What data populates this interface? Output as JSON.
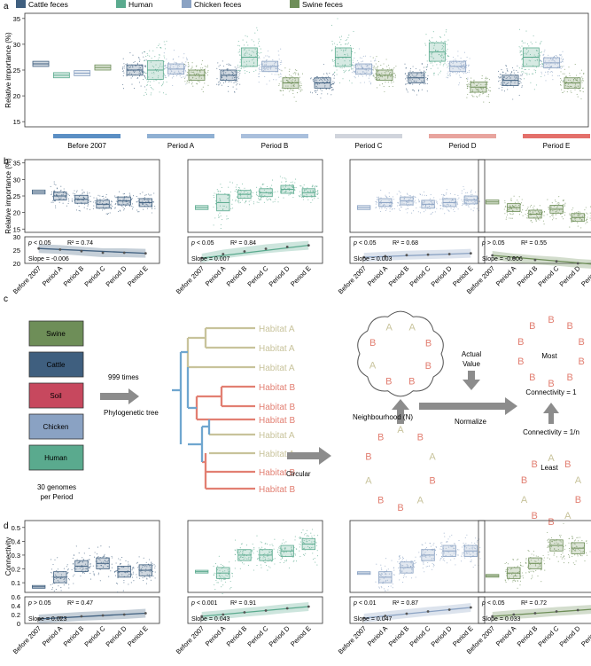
{
  "panels": {
    "a": "a",
    "b": "b",
    "c": "c",
    "d": "d"
  },
  "colors": {
    "cattle": "#3f5f7f",
    "human": "#5aaa8e",
    "chicken": "#8aa2c3",
    "swine": "#6e8e58",
    "soil": "#c7485e",
    "habitatA": "#c8c39b",
    "habitatB": "#e27f72",
    "tree_blue": "#6fa6cf",
    "arrow": "#8c8c8c"
  },
  "legend": [
    "Cattle feces",
    "Human",
    "Chicken feces",
    "Swine feces"
  ],
  "periods": [
    "Before 2007",
    "Period A",
    "Period B",
    "Period C",
    "Period D",
    "Period E"
  ],
  "period_bar_colors": [
    "#5b8fc4",
    "#8fb0d3",
    "#a9bfdc",
    "#d0d4dc",
    "#e8a49e",
    "#e4706b"
  ],
  "chart_data": [
    {
      "id": "a",
      "type": "box",
      "title": "",
      "ylabel": "Relative importance (%)",
      "ylim": [
        14,
        36
      ],
      "yticks": [
        15,
        20,
        25,
        30,
        35
      ],
      "categories": [
        "Before 2007",
        "Period A",
        "Period B",
        "Period C",
        "Period D",
        "Period E"
      ],
      "series": [
        {
          "name": "Cattle feces",
          "values": [
            26.2,
            25.0,
            24.0,
            22.5,
            23.5,
            23.0
          ]
        },
        {
          "name": "Human",
          "values": [
            24.0,
            25.0,
            27.5,
            27.5,
            28.5,
            27.5
          ]
        },
        {
          "name": "Chicken feces",
          "values": [
            24.4,
            25.2,
            25.7,
            25.2,
            25.7,
            26.4
          ]
        },
        {
          "name": "Swine feces",
          "values": [
            25.5,
            24.0,
            22.5,
            24.0,
            21.7,
            22.5
          ]
        }
      ]
    },
    {
      "id": "b",
      "type": "box",
      "ylabel": "Relative importance (%)",
      "ylim": [
        14,
        36
      ],
      "yticks": [
        15,
        20,
        25,
        30,
        35
      ],
      "categories": [
        "Before 2007",
        "Period A",
        "Period B",
        "Period C",
        "Period D",
        "Period E"
      ],
      "series": [
        {
          "name": "Cattle feces",
          "values": [
            26.2,
            25.0,
            24.0,
            22.5,
            23.5,
            23.0
          ],
          "p": "p < 0.05",
          "r2": "R² = 0.74",
          "slope": "Slope = -0.006",
          "trend": [
            25.6,
            25.2,
            24.6,
            24.0,
            24.0,
            23.8
          ]
        },
        {
          "name": "Human",
          "values": [
            21.5,
            23.0,
            25.5,
            26.0,
            27.0,
            26.0
          ],
          "p": "p < 0.05",
          "r2": "R² = 0.84",
          "slope": "Slope = 0.007",
          "trend": [
            22.0,
            23.5,
            24.5,
            25.5,
            26.2,
            26.8
          ]
        },
        {
          "name": "Chicken feces",
          "values": [
            21.5,
            23.0,
            23.5,
            22.5,
            23.0,
            23.8
          ],
          "p": "p < 0.05",
          "r2": "R² = 0.68",
          "slope": "Slope = 0.003",
          "trend": [
            22.3,
            22.7,
            23.1,
            23.3,
            23.5,
            23.8
          ]
        },
        {
          "name": "Swine feces",
          "values": [
            23.2,
            21.5,
            19.5,
            21.0,
            18.5,
            19.5
          ],
          "p": "p > 0.05",
          "r2": "R² = 0.55",
          "slope": "Slope = -0.006",
          "trend": [
            23.0,
            22.0,
            21.3,
            20.8,
            20.0,
            19.5
          ]
        }
      ],
      "subylim": [
        20,
        30
      ],
      "subyticks": [
        20,
        25,
        30
      ]
    },
    {
      "id": "d",
      "type": "box",
      "ylabel": "Connectivity",
      "ylim": [
        0.03,
        0.55
      ],
      "yticks": [
        0.1,
        0.2,
        0.3,
        0.4,
        0.5
      ],
      "categories": [
        "Before 2007",
        "Period A",
        "Period B",
        "Period C",
        "Period D",
        "Period E"
      ],
      "series": [
        {
          "name": "Cattle feces",
          "values": [
            0.07,
            0.14,
            0.22,
            0.24,
            0.18,
            0.19
          ],
          "p": "p > 0.05",
          "r2": "R² = 0.47",
          "slope": "Slope = 0.023",
          "trend": [
            0.1,
            0.13,
            0.16,
            0.18,
            0.2,
            0.23
          ]
        },
        {
          "name": "Human",
          "values": [
            0.18,
            0.17,
            0.3,
            0.3,
            0.33,
            0.38
          ],
          "p": "p < 0.001",
          "r2": "R² = 0.91",
          "slope": "Slope = 0.043",
          "trend": [
            0.16,
            0.2,
            0.25,
            0.29,
            0.34,
            0.38
          ]
        },
        {
          "name": "Chicken feces",
          "values": [
            0.17,
            0.14,
            0.21,
            0.3,
            0.33,
            0.33
          ],
          "p": "p < 0.01",
          "r2": "R² = 0.87",
          "slope": "Slope = 0.047",
          "trend": [
            0.12,
            0.17,
            0.22,
            0.27,
            0.31,
            0.36
          ]
        },
        {
          "name": "Swine feces",
          "values": [
            0.15,
            0.17,
            0.24,
            0.37,
            0.35,
            0.32
          ],
          "p": "p < 0.05",
          "r2": "R² = 0.72",
          "slope": "Slope = 0.033",
          "trend": [
            0.16,
            0.2,
            0.23,
            0.27,
            0.3,
            0.33
          ]
        }
      ],
      "subylim": [
        0.0,
        0.6
      ],
      "subyticks": [
        0.0,
        0.2,
        0.4,
        0.6
      ]
    }
  ],
  "diagram_c": {
    "boxes": [
      "Swine",
      "Cattle",
      "Soil",
      "Chicken",
      "Human"
    ],
    "genomes_note_1": "30 genomes",
    "genomes_note_2": "per Period",
    "times": "999 times",
    "tree_label": "Phylogenetic tree",
    "tips": [
      "Habitat A",
      "Habitat A",
      "Habitat A",
      "Habitat B",
      "Habitat B",
      "Habitat B",
      "Habitat A",
      "Habitat A",
      "Habitat B",
      "Habitat B"
    ],
    "circular": "Circular",
    "neighbourhood": "Neighbourhood (N)",
    "actual_value_1": "Actual",
    "actual_value_2": "Value",
    "normalize": "Normalize",
    "most": "Most",
    "least": "Least",
    "connectivity_1": "Connectivity = 1",
    "connectivity_n": "Connectivity = 1/n",
    "neigh_letters": [
      "A",
      "B",
      "B",
      "B",
      "B",
      "A",
      "B",
      "A"
    ],
    "circle_letters": [
      "A",
      "B",
      "A",
      "B",
      "A",
      "B",
      "B",
      "A",
      "B",
      "B"
    ],
    "most_letters": [
      "B",
      "B",
      "B",
      "B",
      "B",
      "B",
      "B",
      "B",
      "B",
      "B"
    ],
    "least_letters": [
      "A",
      "B",
      "A",
      "B",
      "A",
      "B",
      "B",
      "A",
      "B",
      "B"
    ]
  }
}
